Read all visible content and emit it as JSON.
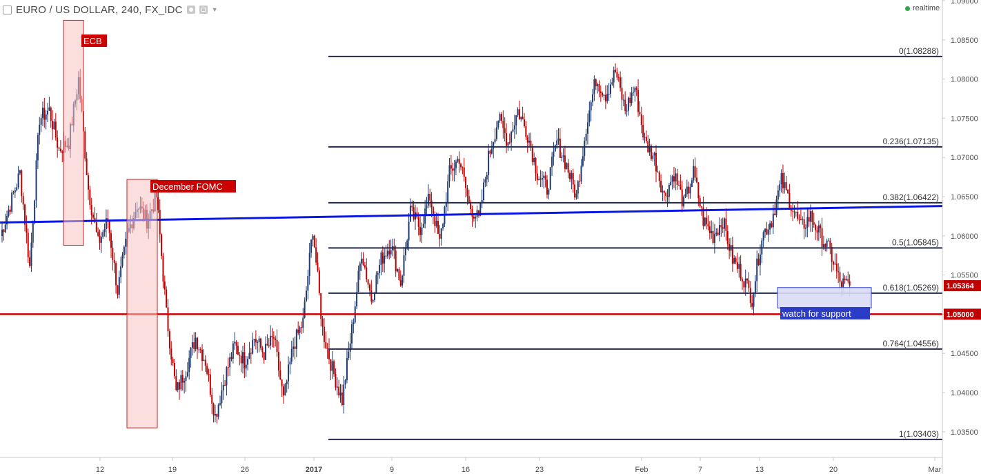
{
  "header": {
    "title": "EURO / US DOLLAR, 240, FX_IDC",
    "status": "realtime"
  },
  "colors": {
    "up": "#1e3a6e",
    "down": "#c00000",
    "fib": "#23284f",
    "trendline": "#0a16e6",
    "support_line": "#cc0000",
    "event_fill": "#f7c5c5",
    "event_stroke": "#cc2222",
    "zone_fill": "#d8dcf4",
    "zone_stroke": "#2b3cc8"
  },
  "chart_data": {
    "type": "candlestick",
    "symbol": "EURO / US DOLLAR",
    "interval": "240",
    "source": "FX_IDC",
    "x_ticks": [
      "12",
      "19",
      "26",
      "2017",
      "9",
      "16",
      "23",
      "Feb",
      "7",
      "13",
      "20",
      "Mar"
    ],
    "y_ticks": [
      "1.09000",
      "1.08500",
      "1.08000",
      "1.07500",
      "1.07000",
      "1.06500",
      "1.06000",
      "1.05500",
      "1.05000",
      "1.04500",
      "1.04000",
      "1.03500"
    ],
    "y_range": [
      1.0325,
      1.0905
    ],
    "fib_levels": [
      {
        "ratio": "0",
        "price": 1.08288,
        "label": "0(1.08288)"
      },
      {
        "ratio": "0.236",
        "price": 1.07135,
        "label": "0.236(1.07135)"
      },
      {
        "ratio": "0.382",
        "price": 1.06422,
        "label": "0.382(1.06422)"
      },
      {
        "ratio": "0.5",
        "price": 1.05845,
        "label": "0.5(1.05845)"
      },
      {
        "ratio": "0.618",
        "price": 1.05269,
        "label": "0.618(1.05269)"
      },
      {
        "ratio": "0.764",
        "price": 1.04556,
        "label": "0.764(1.04556)"
      },
      {
        "ratio": "1",
        "price": 1.03403,
        "label": "1(1.03403)"
      }
    ],
    "current_price": {
      "value": 1.05364,
      "label": "1.05364"
    },
    "support_price": {
      "value": 1.05,
      "label": "1.05000"
    },
    "trendline": {
      "start_price": 1.0617,
      "end_price": 1.0638
    },
    "annotations": [
      {
        "text": "ECB",
        "type": "event",
        "high": 1.0875,
        "low": 1.0588
      },
      {
        "text": "December FOMC",
        "type": "event",
        "high": 1.0672,
        "low": 1.0355
      },
      {
        "text": "watch for support",
        "type": "zone",
        "high": 1.0534,
        "low": 1.0508
      }
    ],
    "price_path": [
      [
        1.06,
        1.064
      ],
      [
        1.064,
        1.068
      ],
      [
        1.068,
        1.056
      ],
      [
        1.056,
        1.075
      ],
      [
        1.075,
        1.076
      ],
      [
        1.076,
        1.071
      ],
      [
        1.071,
        1.072
      ],
      [
        1.072,
        1.08
      ],
      [
        1.08,
        1.066
      ],
      [
        1.066,
        1.059
      ],
      [
        1.059,
        1.062
      ],
      [
        1.062,
        1.053
      ],
      [
        1.053,
        1.06
      ],
      [
        1.06,
        1.064
      ],
      [
        1.064,
        1.062
      ],
      [
        1.062,
        1.065
      ],
      [
        1.065,
        1.05
      ],
      [
        1.05,
        1.04
      ],
      [
        1.04,
        1.043
      ],
      [
        1.043,
        1.047
      ],
      [
        1.047,
        1.044
      ],
      [
        1.044,
        1.037
      ],
      [
        1.037,
        1.042
      ],
      [
        1.042,
        1.046
      ],
      [
        1.046,
        1.044
      ],
      [
        1.044,
        1.047
      ],
      [
        1.047,
        1.045
      ],
      [
        1.045,
        1.047
      ],
      [
        1.047,
        1.039
      ],
      [
        1.039,
        1.046
      ],
      [
        1.046,
        1.049
      ],
      [
        1.049,
        1.061
      ],
      [
        1.061,
        1.048
      ],
      [
        1.048,
        1.043
      ],
      [
        1.043,
        1.039
      ],
      [
        1.039,
        1.048
      ],
      [
        1.048,
        1.058
      ],
      [
        1.058,
        1.052
      ],
      [
        1.052,
        1.057
      ],
      [
        1.057,
        1.059
      ],
      [
        1.059,
        1.054
      ],
      [
        1.054,
        1.063
      ],
      [
        1.063,
        1.061
      ],
      [
        1.061,
        1.065
      ],
      [
        1.065,
        1.059
      ],
      [
        1.059,
        1.068
      ],
      [
        1.068,
        1.07
      ],
      [
        1.07,
        1.064
      ],
      [
        1.064,
        1.062
      ],
      [
        1.062,
        1.07
      ],
      [
        1.07,
        1.075
      ],
      [
        1.075,
        1.072
      ],
      [
        1.072,
        1.076
      ],
      [
        1.076,
        1.073
      ],
      [
        1.073,
        1.068
      ],
      [
        1.068,
        1.066
      ],
      [
        1.066,
        1.072
      ],
      [
        1.072,
        1.069
      ],
      [
        1.069,
        1.065
      ],
      [
        1.065,
        1.074
      ],
      [
        1.074,
        1.08
      ],
      [
        1.08,
        1.078
      ],
      [
        1.078,
        1.081
      ],
      [
        1.081,
        1.076
      ],
      [
        1.076,
        1.079
      ],
      [
        1.079,
        1.072
      ],
      [
        1.072,
        1.07
      ],
      [
        1.07,
        1.065
      ],
      [
        1.065,
        1.068
      ],
      [
        1.068,
        1.064
      ],
      [
        1.064,
        1.068
      ],
      [
        1.068,
        1.062
      ],
      [
        1.062,
        1.06
      ],
      [
        1.06,
        1.062
      ],
      [
        1.062,
        1.057
      ],
      [
        1.057,
        1.055
      ],
      [
        1.055,
        1.052
      ],
      [
        1.052,
        1.06
      ],
      [
        1.06,
        1.062
      ],
      [
        1.062,
        1.067
      ],
      [
        1.067,
        1.064
      ],
      [
        1.064,
        1.061
      ],
      [
        1.061,
        1.0625
      ],
      [
        1.0625,
        1.06
      ],
      [
        1.06,
        1.058
      ],
      [
        1.058,
        1.054
      ],
      [
        1.054,
        1.0536
      ]
    ]
  }
}
